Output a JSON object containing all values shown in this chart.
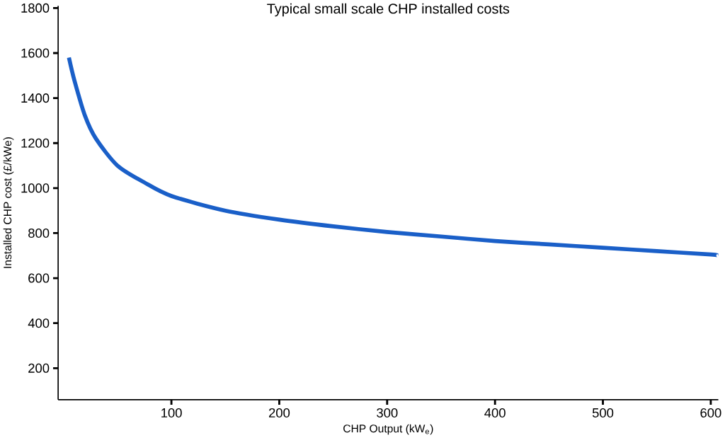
{
  "chart_data": {
    "type": "line",
    "title": "Typical small scale CHP installed costs",
    "xlabel": "CHP Output (kW$_{e}$)",
    "ylabel": "Installed CHP cost (£/kWe)",
    "x": [
      5,
      10,
      20,
      30,
      50,
      75,
      100,
      150,
      200,
      250,
      300,
      350,
      400,
      450,
      500,
      550,
      600,
      607
    ],
    "series": [
      {
        "color": "#1a5fc8",
        "values": [
          1580,
          1480,
          1320,
          1220,
          1100,
          1025,
          965,
          900,
          860,
          830,
          805,
          785,
          765,
          750,
          735,
          720,
          705,
          700
        ]
      }
    ],
    "xlim": [
      -5,
      607
    ],
    "ylim": [
      60,
      1810
    ],
    "xticks": [
      100,
      200,
      300,
      400,
      500,
      600
    ],
    "yticks": [
      200,
      400,
      600,
      800,
      1000,
      1200,
      1400,
      1600,
      1800
    ],
    "grid": false,
    "marker": "none",
    "line_style": "solid"
  }
}
